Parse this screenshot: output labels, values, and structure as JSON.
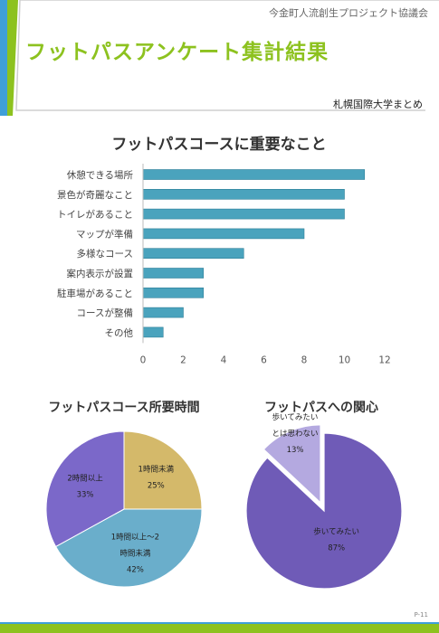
{
  "header": {
    "org": "今金町人流創生プロジェクト協議会",
    "title": "フットパスアンケート集計結果",
    "author": "札幌国際大学まとめ"
  },
  "page_number": "P-11",
  "colors": {
    "accent": "#8dc21f",
    "accent_blue": "#3f9fd8",
    "bar": "#4aa3bd",
    "pie_gold": "#d4b96a",
    "pie_blue": "#6aaecb",
    "pie_purple": "#7b68c9",
    "pie_lavender": "#b4a9e0",
    "pie_deep_purple": "#6f5bb7"
  },
  "chart_data": [
    {
      "type": "bar",
      "orientation": "horizontal",
      "title": "フットパスコースに重要なこと",
      "categories": [
        "休憩できる場所",
        "景色が奇麗なこと",
        "トイレがあること",
        "マップが準備",
        "多様なコース",
        "案内表示が設置",
        "駐車場があること",
        "コースが整備",
        "その他"
      ],
      "values": [
        11,
        10,
        10,
        8,
        5,
        3,
        3,
        2,
        1
      ],
      "xlim": [
        0,
        12
      ],
      "xticks": [
        "0",
        "2",
        "4",
        "6",
        "8",
        "10",
        "12"
      ],
      "grid": false
    },
    {
      "type": "pie",
      "title": "フットパスコース所要時間",
      "slices": [
        {
          "label": [
            "1時間未満"
          ],
          "value": 25,
          "pct": "25%"
        },
        {
          "label": [
            "1時間以上～2",
            "時間未満"
          ],
          "value": 42,
          "pct": "42%"
        },
        {
          "label": [
            "2時間以上"
          ],
          "value": 33,
          "pct": "33%"
        }
      ]
    },
    {
      "type": "pie",
      "title": "フットパスへの関心",
      "slices": [
        {
          "label": [
            "歩いてみたい"
          ],
          "value": 87,
          "pct": "87%"
        },
        {
          "label": [
            "歩いてみたい",
            "とは思わない"
          ],
          "value": 13,
          "pct": "13%"
        }
      ]
    }
  ]
}
